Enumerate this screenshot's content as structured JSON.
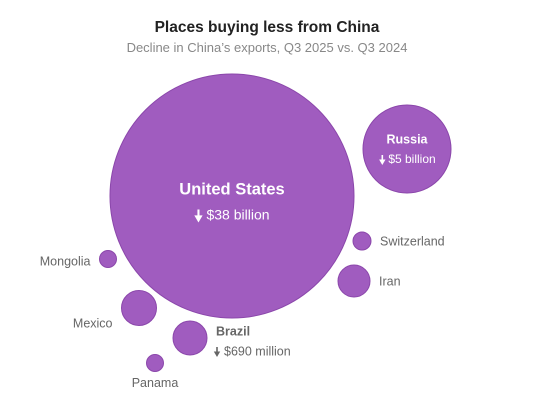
{
  "title": "Places buying less from China",
  "subtitle": "Decline in China’s exports, Q3 2025 vs. Q3 2024",
  "colors": {
    "bubble": "#a05cbf",
    "bubble_stroke": "#8b47ab",
    "label_outside": "#666666",
    "label_inside": "#ffffff"
  },
  "chart_data": {
    "type": "bubble",
    "title": "Places buying less from China",
    "subtitle": "Decline in China’s exports, Q3 2025 vs. Q3 2024",
    "unit": "USD",
    "series": [
      {
        "name": "United States",
        "value_label": "$38 billion",
        "value": 38000000000,
        "label_position": "inside",
        "emphasis": true
      },
      {
        "name": "Russia",
        "value_label": "$5 billion",
        "value": 5000000000,
        "label_position": "inside",
        "emphasis": true
      },
      {
        "name": "Brazil",
        "value_label": "$690 million",
        "value": 690000000,
        "label_position": "right",
        "emphasis": true
      },
      {
        "name": "Switzerland",
        "label_position": "right",
        "emphasis": false
      },
      {
        "name": "Iran",
        "label_position": "right",
        "emphasis": false
      },
      {
        "name": "Mongolia",
        "label_position": "left",
        "emphasis": false
      },
      {
        "name": "Mexico",
        "label_position": "left",
        "emphasis": false
      },
      {
        "name": "Panama",
        "label_position": "below",
        "emphasis": false
      }
    ],
    "decline_indicator": "down-arrow-icon"
  }
}
